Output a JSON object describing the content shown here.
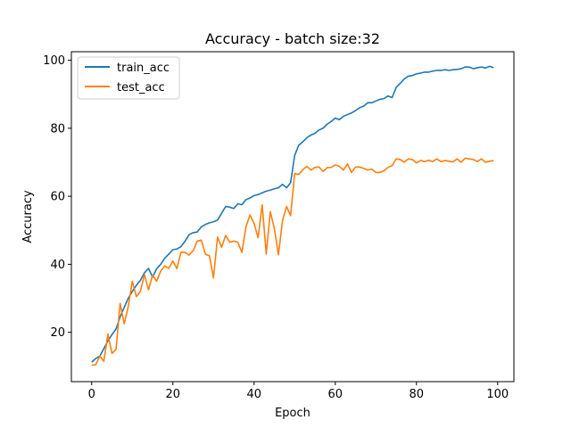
{
  "chart_data": {
    "type": "line",
    "title": "Accuracy - batch size:32",
    "xlabel": "Epoch",
    "ylabel": "Accuracy",
    "xlim": [
      -5,
      104
    ],
    "ylim": [
      5.5,
      102.5
    ],
    "xticks": [
      0,
      20,
      40,
      60,
      80,
      100
    ],
    "yticks": [
      20,
      40,
      60,
      80,
      100
    ],
    "grid": false,
    "legend_position": "top-left",
    "series": [
      {
        "name": "train_acc",
        "color": "#1f77b4",
        "x": [
          0,
          1,
          2,
          3,
          4,
          5,
          6,
          7,
          8,
          9,
          10,
          11,
          12,
          13,
          14,
          15,
          16,
          17,
          18,
          19,
          20,
          21,
          22,
          23,
          24,
          25,
          26,
          27,
          28,
          29,
          30,
          31,
          32,
          33,
          34,
          35,
          36,
          37,
          38,
          39,
          40,
          41,
          42,
          43,
          44,
          45,
          46,
          47,
          48,
          49,
          50,
          51,
          52,
          53,
          54,
          55,
          56,
          57,
          58,
          59,
          60,
          61,
          62,
          63,
          64,
          65,
          66,
          67,
          68,
          69,
          70,
          71,
          72,
          73,
          74,
          75,
          76,
          77,
          78,
          79,
          80,
          81,
          82,
          83,
          84,
          85,
          86,
          87,
          88,
          89,
          90,
          91,
          92,
          93,
          94,
          95,
          96,
          97,
          98,
          99
        ],
        "y": [
          11.2,
          12.3,
          13.0,
          15.2,
          17.5,
          19.3,
          21.0,
          24.5,
          27.3,
          30.0,
          32.0,
          33.8,
          35.3,
          37.5,
          38.8,
          36.2,
          38.7,
          40.0,
          41.8,
          43.0,
          44.3,
          44.5,
          45.2,
          46.8,
          48.7,
          49.3,
          49.5,
          51.0,
          51.7,
          52.2,
          52.5,
          53.0,
          55.0,
          57.0,
          56.8,
          56.4,
          57.8,
          57.5,
          59.0,
          59.5,
          60.2,
          60.5,
          61.0,
          61.5,
          61.8,
          62.2,
          62.5,
          63.5,
          62.5,
          64.0,
          72.0,
          75.0,
          76.0,
          77.2,
          78.0,
          78.5,
          79.5,
          80.0,
          81.2,
          82.0,
          83.0,
          82.5,
          83.5,
          84.0,
          84.5,
          85.2,
          86.0,
          86.5,
          87.5,
          87.5,
          88.0,
          88.5,
          88.7,
          89.5,
          89.0,
          92.0,
          93.2,
          94.5,
          95.3,
          95.5,
          96.0,
          96.2,
          96.5,
          96.5,
          96.8,
          97.0,
          97.0,
          97.2,
          97.0,
          97.2,
          97.3,
          97.5,
          98.0,
          98.0,
          97.5,
          97.8,
          98.0,
          97.7,
          98.2,
          97.8
        ]
      },
      {
        "name": "test_acc",
        "color": "#ff7f0e",
        "x": [
          0,
          1,
          2,
          3,
          4,
          5,
          6,
          7,
          8,
          9,
          10,
          11,
          12,
          13,
          14,
          15,
          16,
          17,
          18,
          19,
          20,
          21,
          22,
          23,
          24,
          25,
          26,
          27,
          28,
          29,
          30,
          31,
          32,
          33,
          34,
          35,
          36,
          37,
          38,
          39,
          40,
          41,
          42,
          43,
          44,
          45,
          46,
          47,
          48,
          49,
          50,
          51,
          52,
          53,
          54,
          55,
          56,
          57,
          58,
          59,
          60,
          61,
          62,
          63,
          64,
          65,
          66,
          67,
          68,
          69,
          70,
          71,
          72,
          73,
          74,
          75,
          76,
          77,
          78,
          79,
          80,
          81,
          82,
          83,
          84,
          85,
          86,
          87,
          88,
          89,
          90,
          91,
          92,
          93,
          94,
          95,
          96,
          97,
          98,
          99
        ],
        "y": [
          10.3,
          10.5,
          13.0,
          11.5,
          19.5,
          13.8,
          15.0,
          28.5,
          22.5,
          27.5,
          35.0,
          30.5,
          32.0,
          37.0,
          32.5,
          36.8,
          35.0,
          38.0,
          39.5,
          38.8,
          41.0,
          38.7,
          43.6,
          43.5,
          42.7,
          44.0,
          46.8,
          47.1,
          43.0,
          42.5,
          36.0,
          48.0,
          45.0,
          48.5,
          46.5,
          46.8,
          46.5,
          43.5,
          51.0,
          54.5,
          52.0,
          47.8,
          57.5,
          43.0,
          55.5,
          50.5,
          42.8,
          52.8,
          57.0,
          54.3,
          66.7,
          66.4,
          67.8,
          68.8,
          67.7,
          68.5,
          68.6,
          67.3,
          68.4,
          68.5,
          69.2,
          68.8,
          67.7,
          69.5,
          67.0,
          68.6,
          68.6,
          68.2,
          67.7,
          68.0,
          67.0,
          67.0,
          67.5,
          68.5,
          69.0,
          71.0,
          70.8,
          70.0,
          71.0,
          70.8,
          69.8,
          70.5,
          70.2,
          70.6,
          70.2,
          71.0,
          70.2,
          70.5,
          70.3,
          70.1,
          71.0,
          70.0,
          71.2,
          71.0,
          70.8,
          70.2,
          71.0,
          70.0,
          70.3,
          70.5
        ]
      }
    ]
  }
}
